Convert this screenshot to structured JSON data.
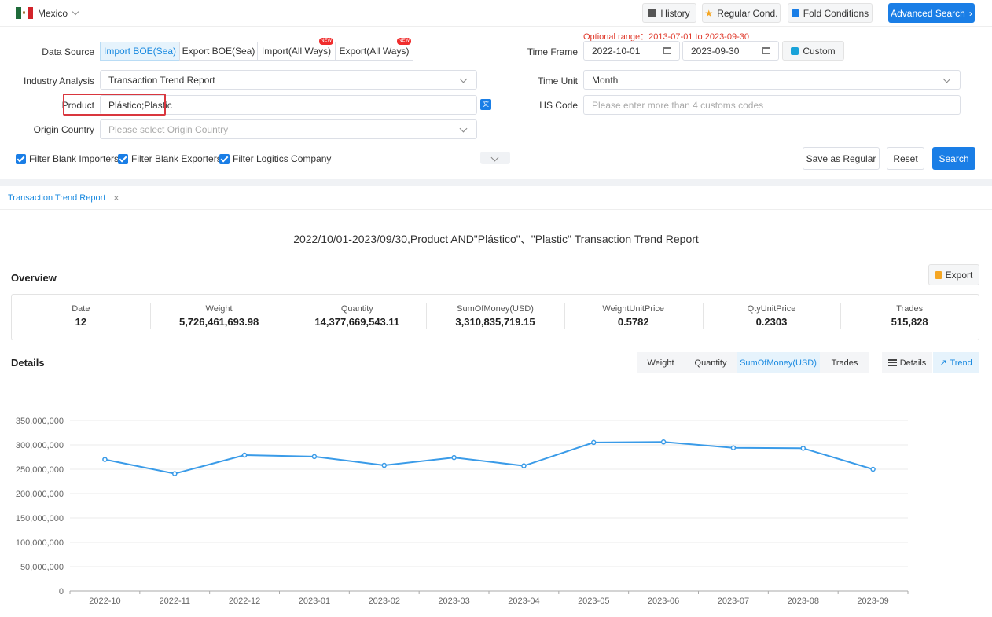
{
  "topbar": {
    "country": "Mexico",
    "history": "History",
    "regular_cond": "Regular Cond.",
    "fold_conditions": "Fold Conditions",
    "advanced_search": "Advanced Search"
  },
  "form": {
    "data_source_label": "Data Source",
    "data_sources": [
      "Import BOE(Sea)",
      "Export BOE(Sea)",
      "Import(All Ways)",
      "Export(All Ways)"
    ],
    "new_tag": "NEW",
    "optional_range": "Optional range：2013-07-01 to 2023-09-30",
    "time_frame_label": "Time Frame",
    "date_from": "2022-10-01",
    "date_to": "2023-09-30",
    "custom": "Custom",
    "industry_label": "Industry Analysis",
    "industry_value": "Transaction Trend Report",
    "time_unit_label": "Time Unit",
    "time_unit_value": "Month",
    "product_label": "Product",
    "product_value": "Plástico;Plastic",
    "hs_label": "HS Code",
    "hs_placeholder": "Please enter more than 4 customs codes",
    "origin_label": "Origin Country",
    "origin_placeholder": "Please select Origin Country",
    "filters": [
      "Filter Blank Importers",
      "Filter Blank Exporters",
      "Filter Logitics Company"
    ],
    "save_regular": "Save as Regular",
    "reset": "Reset",
    "search": "Search"
  },
  "tab_label": "Transaction Trend Report",
  "report_title": "2022/10/01-2023/09/30,Product AND\"Plástico\"、\"Plastic\" Transaction Trend Report",
  "overview": {
    "title": "Overview",
    "export": "Export",
    "cells": [
      {
        "label": "Date",
        "value": "12"
      },
      {
        "label": "Weight",
        "value": "5,726,461,693.98"
      },
      {
        "label": "Quantity",
        "value": "14,377,669,543.11"
      },
      {
        "label": "SumOfMoney(USD)",
        "value": "3,310,835,719.15"
      },
      {
        "label": "WeightUnitPrice",
        "value": "0.5782"
      },
      {
        "label": "QtyUnitPrice",
        "value": "0.2303"
      },
      {
        "label": "Trades",
        "value": "515,828"
      }
    ]
  },
  "details": {
    "title": "Details",
    "metrics": [
      "Weight",
      "Quantity",
      "SumOfMoney(USD)",
      "Trades"
    ],
    "active_metric": "SumOfMoney(USD)",
    "views": [
      "Details",
      "Trend"
    ],
    "active_view": "Trend"
  },
  "colors": {
    "accent": "#1a7ee6",
    "line": "#3a9be8",
    "warn": "#e0392b"
  },
  "chart_data": {
    "type": "line",
    "categories": [
      "2022-10",
      "2022-11",
      "2022-12",
      "2023-01",
      "2023-02",
      "2023-03",
      "2023-04",
      "2023-05",
      "2023-06",
      "2023-07",
      "2023-08",
      "2023-09"
    ],
    "series": [
      {
        "values": [
          270000000,
          241000000,
          279000000,
          276000000,
          258000000,
          274000000,
          257000000,
          305000000,
          306000000,
          294000000,
          293000000,
          250000000
        ]
      }
    ],
    "yticks": [
      "0",
      "50,000,000",
      "100,000,000",
      "150,000,000",
      "200,000,000",
      "250,000,000",
      "300,000,000",
      "350,000,000"
    ],
    "ylim": [
      0,
      350000000
    ],
    "grid": true
  }
}
